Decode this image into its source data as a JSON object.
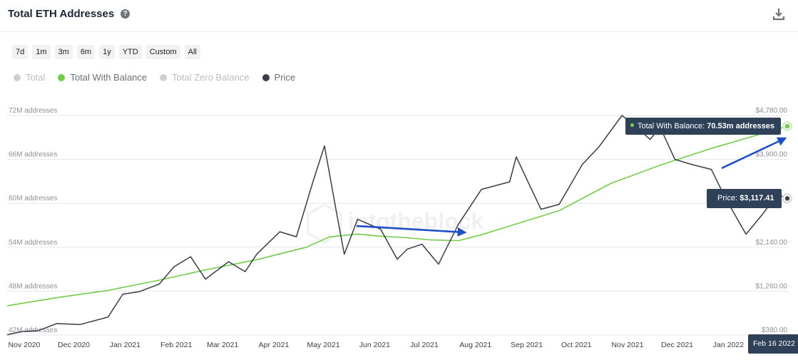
{
  "header": {
    "title": "Total ETH Addresses",
    "help_icon": "question-circle-icon",
    "download_icon": "download-icon"
  },
  "ranges": [
    "7d",
    "1m",
    "3m",
    "6m",
    "1y",
    "YTD",
    "Custom",
    "All"
  ],
  "legend": [
    {
      "label": "Total",
      "color": "#d0d0d0",
      "active": false
    },
    {
      "label": "Total With Balance",
      "color": "#73cc49",
      "active": true
    },
    {
      "label": "Total Zero Balance",
      "color": "#d0d0d0",
      "active": false
    },
    {
      "label": "Price",
      "color": "#383d47",
      "active": true
    }
  ],
  "watermark": "intotheblock",
  "tooltips": {
    "balance_prefix": "Total With Balance: ",
    "balance_value": "70.53m addresses",
    "price_prefix": "Price: ",
    "price_value": "$3,117.41",
    "date": "Feb 16 2022"
  },
  "chart_data": {
    "type": "line",
    "title": "Total ETH Addresses",
    "x_start": "2020-11-01",
    "x_end": "2022-02-16",
    "x_ticks": [
      {
        "date": "2020-11-01",
        "label": "Nov 2020"
      },
      {
        "date": "2020-12-01",
        "label": "Dec 2020"
      },
      {
        "date": "2021-01-01",
        "label": "Jan 2021"
      },
      {
        "date": "2021-02-01",
        "label": "Feb 2021"
      },
      {
        "date": "2021-03-01",
        "label": "Mar 2021"
      },
      {
        "date": "2021-04-01",
        "label": "Apr 2021"
      },
      {
        "date": "2021-05-01",
        "label": "May 2021"
      },
      {
        "date": "2021-06-01",
        "label": "Jun 2021"
      },
      {
        "date": "2021-07-01",
        "label": "Jul 2021"
      },
      {
        "date": "2021-08-01",
        "label": "Aug 2021"
      },
      {
        "date": "2021-09-01",
        "label": "Sep 2021"
      },
      {
        "date": "2021-10-01",
        "label": "Oct 2021"
      },
      {
        "date": "2021-11-01",
        "label": "Nov 2021"
      },
      {
        "date": "2021-12-01",
        "label": "Dec 2021"
      },
      {
        "date": "2022-01-01",
        "label": "Jan 2022"
      }
    ],
    "y_left": {
      "min": 42,
      "max": 72,
      "unit_suffix": "M addresses",
      "ticks": [
        {
          "value": 72,
          "label": "72M addresses"
        },
        {
          "value": 66,
          "label": "66M addresses"
        },
        {
          "value": 60,
          "label": "60M addresses"
        },
        {
          "value": 54,
          "label": "54M addresses"
        },
        {
          "value": 48,
          "label": "48M addresses"
        },
        {
          "value": 42,
          "label": "42M addresses"
        }
      ]
    },
    "y_right": {
      "min": 380,
      "max": 4780,
      "ticks": [
        {
          "value": 4780,
          "label": "$4,780.00"
        },
        {
          "value": 3900,
          "label": "$3,900.00"
        },
        {
          "value": 3020,
          "label": ""
        },
        {
          "value": 2140,
          "label": "$2,140.00"
        },
        {
          "value": 1260,
          "label": "$1,260.00"
        },
        {
          "value": 380,
          "label": "$380.00"
        }
      ]
    },
    "grid": true,
    "series": [
      {
        "name": "Total With Balance",
        "axis": "left",
        "color": "#73cc49",
        "points": [
          [
            "2020-11-01",
            46.0
          ],
          [
            "2020-12-01",
            47.1
          ],
          [
            "2021-01-01",
            48.1
          ],
          [
            "2021-02-01",
            49.5
          ],
          [
            "2021-03-01",
            50.9
          ],
          [
            "2021-04-01",
            52.3
          ],
          [
            "2021-05-01",
            54.0
          ],
          [
            "2021-05-15",
            55.4
          ],
          [
            "2021-06-01",
            55.8
          ],
          [
            "2021-06-15",
            55.5
          ],
          [
            "2021-07-01",
            55.3
          ],
          [
            "2021-07-15",
            55.0
          ],
          [
            "2021-08-01",
            54.9
          ],
          [
            "2021-08-15",
            55.7
          ],
          [
            "2021-09-01",
            56.9
          ],
          [
            "2021-10-01",
            59.0
          ],
          [
            "2021-11-01",
            62.7
          ],
          [
            "2021-12-01",
            65.2
          ],
          [
            "2022-01-01",
            67.5
          ],
          [
            "2022-02-16",
            70.53
          ]
        ]
      },
      {
        "name": "Price",
        "axis": "right",
        "color": "#383d47",
        "points": [
          [
            "2020-11-01",
            385
          ],
          [
            "2020-11-10",
            450
          ],
          [
            "2020-11-20",
            470
          ],
          [
            "2020-12-01",
            610
          ],
          [
            "2020-12-15",
            590
          ],
          [
            "2021-01-01",
            740
          ],
          [
            "2021-01-10",
            1200
          ],
          [
            "2021-01-20",
            1250
          ],
          [
            "2021-02-01",
            1400
          ],
          [
            "2021-02-10",
            1750
          ],
          [
            "2021-02-20",
            1950
          ],
          [
            "2021-03-01",
            1500
          ],
          [
            "2021-03-15",
            1850
          ],
          [
            "2021-03-25",
            1650
          ],
          [
            "2021-04-01",
            2000
          ],
          [
            "2021-04-15",
            2450
          ],
          [
            "2021-04-25",
            2350
          ],
          [
            "2021-05-05",
            3450
          ],
          [
            "2021-05-12",
            4170
          ],
          [
            "2021-05-20",
            2700
          ],
          [
            "2021-05-24",
            2000
          ],
          [
            "2021-06-01",
            2700
          ],
          [
            "2021-06-15",
            2500
          ],
          [
            "2021-06-25",
            1900
          ],
          [
            "2021-07-01",
            2100
          ],
          [
            "2021-07-10",
            2200
          ],
          [
            "2021-07-20",
            1800
          ],
          [
            "2021-08-01",
            2600
          ],
          [
            "2021-08-15",
            3300
          ],
          [
            "2021-09-01",
            3450
          ],
          [
            "2021-09-05",
            3950
          ],
          [
            "2021-09-20",
            2900
          ],
          [
            "2021-10-01",
            3000
          ],
          [
            "2021-10-15",
            3800
          ],
          [
            "2021-10-25",
            4150
          ],
          [
            "2021-11-08",
            4780
          ],
          [
            "2021-11-15",
            4600
          ],
          [
            "2021-11-25",
            4300
          ],
          [
            "2021-12-01",
            4550
          ],
          [
            "2021-12-10",
            3900
          ],
          [
            "2021-12-20",
            3800
          ],
          [
            "2022-01-01",
            3700
          ],
          [
            "2022-01-10",
            3100
          ],
          [
            "2022-01-22",
            2400
          ],
          [
            "2022-02-01",
            2800
          ],
          [
            "2022-02-10",
            3200
          ],
          [
            "2022-02-16",
            3117.41
          ]
        ]
      }
    ]
  }
}
